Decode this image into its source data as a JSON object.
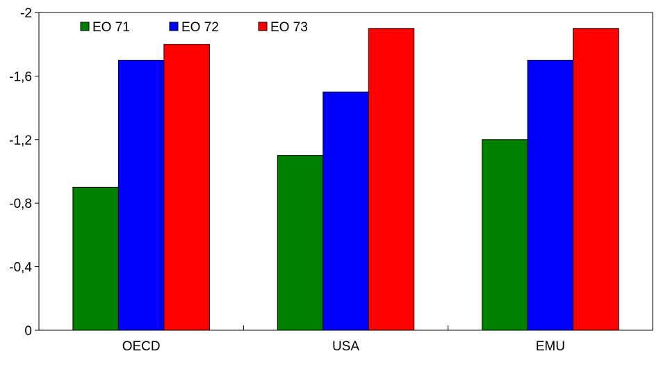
{
  "chart_data": {
    "type": "bar",
    "title": "",
    "xlabel": "",
    "ylabel": "",
    "categories": [
      "OECD",
      "USA",
      "EMU"
    ],
    "series": [
      {
        "name": "EO 71",
        "values": [
          -0.9,
          -1.1,
          -1.2
        ],
        "color": "#008000"
      },
      {
        "name": "EO 72",
        "values": [
          -1.7,
          -1.5,
          -1.7
        ],
        "color": "#0000ff"
      },
      {
        "name": "EO 73",
        "values": [
          -1.8,
          -1.9,
          -1.9
        ],
        "color": "#ff0000"
      }
    ],
    "ylim": [
      0,
      -2
    ],
    "y_axis_inverted": true,
    "yticks": [
      0,
      -0.4,
      -0.8,
      -1.2,
      -1.6,
      -2
    ],
    "ytick_labels": [
      "0",
      "-0,4",
      "-0,8",
      "-1,2",
      "-1,6",
      "-2"
    ],
    "grid": false,
    "legend_position": "top-left"
  }
}
